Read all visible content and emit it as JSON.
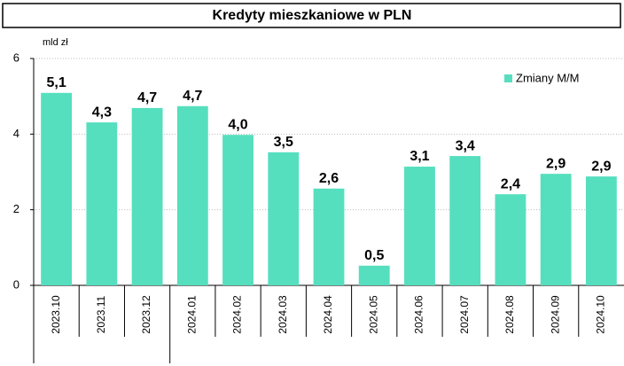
{
  "chart_data": {
    "type": "bar",
    "title": "Kredyty mieszkaniowe w PLN",
    "y_label": "mld zł",
    "categories": [
      "2023.10",
      "2023.11",
      "2023.12",
      "2024.01",
      "2024.02",
      "2024.03",
      "2024.04",
      "2024.05",
      "2024.06",
      "2024.07",
      "2024.08",
      "2024.09",
      "2024.10"
    ],
    "series": [
      {
        "name": "Zmiany M/M",
        "color": "#55dfbe",
        "values": [
          5.09,
          4.31,
          4.69,
          4.74,
          3.98,
          3.52,
          2.56,
          0.52,
          3.14,
          3.42,
          2.41,
          2.95,
          2.88
        ],
        "value_labels": [
          "5,1",
          "4,3",
          "4,7",
          "4,7",
          "4,0",
          "3,5",
          "2,6",
          "0,5",
          "3,1",
          "3,4",
          "2,4",
          "2,9",
          "2,9"
        ]
      }
    ],
    "ylim": [
      0,
      6
    ],
    "yticks": [
      0,
      2,
      4,
      6
    ],
    "grid": true,
    "legend": "upper right"
  }
}
